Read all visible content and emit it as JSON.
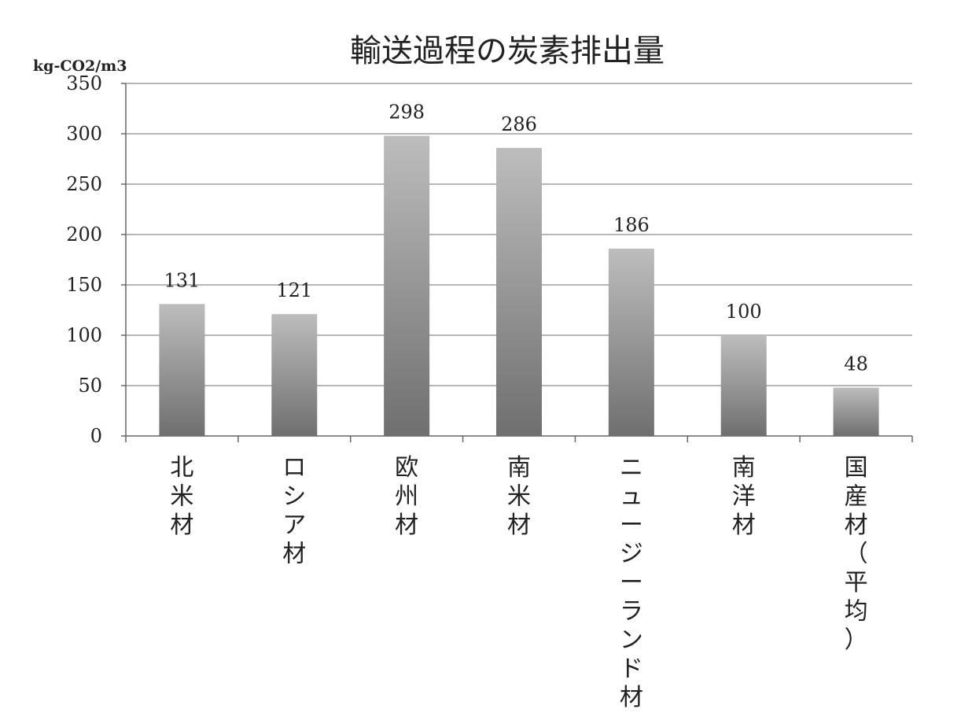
{
  "chart_data": {
    "type": "bar",
    "title": "輸送過程の炭素排出量",
    "ylabel": "kg-CO2/m3",
    "xlabel": "",
    "categories": [
      "北米材",
      "ロシア材",
      "欧州材",
      "南米材",
      "ニュージーランド材",
      "南洋材",
      "国産材（平均）"
    ],
    "values": [
      131,
      121,
      298,
      286,
      186,
      100,
      48
    ],
    "data_labels": [
      "131",
      "121",
      "298",
      "286",
      "186",
      "100",
      "48"
    ],
    "ylim": [
      0,
      350
    ],
    "yticks": [
      "0",
      "50",
      "100",
      "150",
      "200",
      "250",
      "300",
      "350"
    ],
    "ytick_values": [
      0,
      50,
      100,
      150,
      200,
      250,
      300,
      350
    ],
    "grid": true,
    "legend": "none",
    "bar_color_top": "#bdbdbd",
    "bar_color_bottom": "#6f6f6f"
  }
}
